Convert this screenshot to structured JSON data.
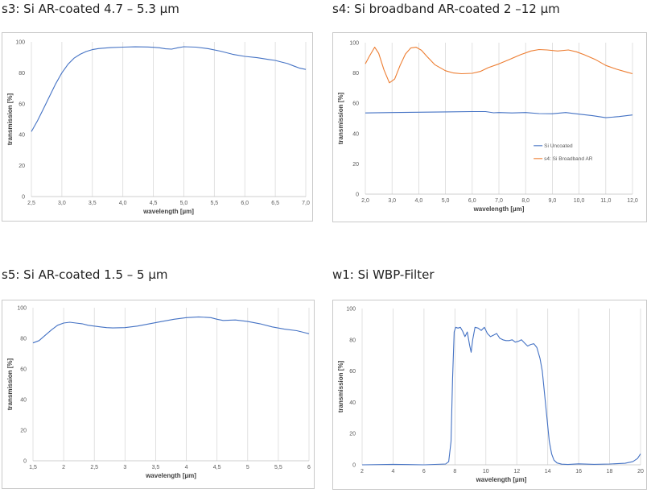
{
  "charts": [
    {
      "title": "s3: Si AR-coated 4.7 – 5.3 µm"
    },
    {
      "title": "s4: Si broadband AR-coated 2 –12 µm"
    },
    {
      "title": "s5: Si AR-coated 1.5 – 5 µm"
    },
    {
      "title": "w1: Si WBP-Filter"
    }
  ],
  "colors": {
    "blue": "#4472C4",
    "orange": "#ED7D31",
    "grid": "#d9d9d9"
  },
  "chart_data": [
    {
      "type": "line",
      "title": "s3: Si AR-coated 4.7 – 5.3 µm",
      "xlabel": "wavelength [µm]",
      "ylabel": "transmission [%]",
      "xlim": [
        2.5,
        7.0
      ],
      "ylim": [
        0,
        100
      ],
      "x_ticks": [
        "2,5",
        "3,0",
        "3,5",
        "4,0",
        "4,5",
        "5,0",
        "5,5",
        "6,0",
        "6,5",
        "7,0"
      ],
      "y_ticks": [
        "0",
        "20",
        "40",
        "60",
        "80",
        "100"
      ],
      "grid": "vertical",
      "series": [
        {
          "color": "#4472C4",
          "x": [
            2.5,
            2.6,
            2.7,
            2.8,
            2.9,
            3.0,
            3.1,
            3.2,
            3.3,
            3.4,
            3.5,
            3.6,
            3.8,
            4.0,
            4.2,
            4.4,
            4.5,
            4.6,
            4.7,
            4.8,
            4.9,
            5.0,
            5.2,
            5.4,
            5.6,
            5.8,
            6.0,
            6.2,
            6.4,
            6.5,
            6.6,
            6.7,
            6.8,
            6.9,
            7.0
          ],
          "y": [
            42,
            49,
            57,
            65,
            73,
            80,
            85.5,
            89.5,
            92,
            93.8,
            95,
            95.7,
            96.3,
            96.6,
            96.8,
            96.7,
            96.5,
            96.2,
            95.5,
            95.3,
            96.2,
            96.9,
            96.6,
            95.6,
            94,
            92,
            90.6,
            89.8,
            88.6,
            88,
            87,
            86,
            84.5,
            83,
            82.2
          ]
        }
      ]
    },
    {
      "type": "line",
      "title": "s4: Si broadband AR-coated 2 –12 µm",
      "xlabel": "wavelength [µm]",
      "ylabel": "transmission [%]",
      "xlim": [
        2.0,
        12.0
      ],
      "ylim": [
        0,
        100
      ],
      "x_ticks": [
        "2,0",
        "3,0",
        "4,0",
        "5,0",
        "6,0",
        "7,0",
        "8,0",
        "9,0",
        "10,0",
        "11,0",
        "12,0"
      ],
      "y_ticks": [
        "0",
        "20",
        "40",
        "60",
        "80",
        "100"
      ],
      "grid": "vertical",
      "legend": "middle-right",
      "series": [
        {
          "name": "Si Uncoated",
          "color": "#4472C4",
          "x": [
            2.0,
            3.0,
            4.0,
            5.0,
            6.0,
            6.5,
            6.8,
            7.0,
            7.5,
            8.0,
            8.5,
            9.0,
            9.5,
            10.0,
            10.5,
            11.0,
            11.5,
            12.0
          ],
          "y": [
            53.6,
            53.9,
            54.1,
            54.3,
            54.5,
            54.5,
            53.7,
            53.9,
            53.6,
            53.9,
            53.2,
            53.1,
            53.9,
            52.8,
            51.8,
            50.5,
            51.2,
            52.3
          ]
        },
        {
          "name": "s4: Si Broadband AR",
          "color": "#ED7D31",
          "x": [
            2.0,
            2.15,
            2.35,
            2.5,
            2.7,
            2.9,
            3.1,
            3.3,
            3.5,
            3.7,
            3.9,
            4.1,
            4.3,
            4.6,
            5.0,
            5.3,
            5.6,
            6.0,
            6.3,
            6.6,
            7.0,
            7.4,
            7.8,
            8.2,
            8.5,
            8.8,
            9.2,
            9.6,
            9.9,
            10.2,
            10.6,
            11.0,
            11.4,
            11.8,
            12.0
          ],
          "y": [
            86,
            91,
            97,
            93,
            82,
            73.5,
            76,
            85,
            92.5,
            96.5,
            97,
            95,
            91,
            85.5,
            81.5,
            80,
            79.5,
            79.8,
            81,
            83.5,
            86,
            89,
            92,
            94.5,
            95.5,
            95.2,
            94.5,
            95.2,
            94,
            92,
            89,
            85,
            82.5,
            80.5,
            79.5
          ]
        }
      ]
    },
    {
      "type": "line",
      "title": "s5: Si AR-coated 1.5 – 5 µm",
      "xlabel": "wavelength [µm]",
      "ylabel": "transmission [%]",
      "xlim": [
        1.5,
        6.0
      ],
      "ylim": [
        0,
        100
      ],
      "x_ticks": [
        "1,5",
        "2",
        "2,5",
        "3",
        "3,5",
        "4",
        "4,5",
        "5",
        "5,5",
        "6"
      ],
      "y_ticks": [
        "0",
        "20",
        "40",
        "60",
        "80",
        "100"
      ],
      "grid": "vertical",
      "series": [
        {
          "color": "#4472C4",
          "x": [
            1.5,
            1.6,
            1.7,
            1.8,
            1.9,
            2.0,
            2.1,
            2.2,
            2.3,
            2.4,
            2.5,
            2.6,
            2.7,
            2.8,
            3.0,
            3.2,
            3.4,
            3.6,
            3.8,
            4.0,
            4.2,
            4.4,
            4.5,
            4.6,
            4.8,
            5.0,
            5.2,
            5.4,
            5.6,
            5.8,
            5.9,
            6.0
          ],
          "y": [
            77,
            78.5,
            82,
            85.5,
            88.5,
            90,
            90.5,
            90,
            89.5,
            88.5,
            88,
            87.5,
            87,
            86.8,
            87,
            88,
            89.5,
            91,
            92.5,
            93.5,
            94,
            93.5,
            92.5,
            91.7,
            92,
            91,
            89.5,
            87.5,
            86,
            85,
            84,
            83
          ]
        }
      ]
    },
    {
      "type": "line",
      "title": "w1: Si WBP-Filter",
      "xlabel": "wavelength [µm]",
      "ylabel": "transmission [%]",
      "xlim": [
        2,
        20
      ],
      "ylim": [
        0,
        100
      ],
      "x_ticks": [
        "2",
        "4",
        "6",
        "8",
        "10",
        "12",
        "14",
        "16",
        "18",
        "20"
      ],
      "y_ticks": [
        "0",
        "20",
        "40",
        "60",
        "80",
        "100"
      ],
      "grid": "vertical",
      "series": [
        {
          "color": "#4472C4",
          "x": [
            2,
            4,
            6,
            7.4,
            7.6,
            7.75,
            7.85,
            7.95,
            8.05,
            8.2,
            8.35,
            8.5,
            8.65,
            8.8,
            8.95,
            9.05,
            9.15,
            9.3,
            9.5,
            9.7,
            9.9,
            10.1,
            10.3,
            10.5,
            10.7,
            10.9,
            11.1,
            11.3,
            11.5,
            11.7,
            11.9,
            12.1,
            12.3,
            12.5,
            12.7,
            12.9,
            13.1,
            13.3,
            13.5,
            13.65,
            13.8,
            13.95,
            14.1,
            14.25,
            14.4,
            14.6,
            14.9,
            15.3,
            16,
            17,
            18,
            19,
            19.5,
            19.8,
            20
          ],
          "y": [
            0,
            0.3,
            0,
            0.5,
            2,
            15,
            55,
            85,
            88,
            87.5,
            88,
            85.5,
            82,
            85,
            76.5,
            72,
            80,
            88,
            87.5,
            86,
            88,
            84,
            82,
            83,
            84,
            81,
            80,
            79.5,
            79.5,
            80,
            78.5,
            79,
            80,
            78,
            76,
            77,
            77.5,
            75,
            68,
            60,
            45,
            30,
            15,
            7,
            3,
            1.2,
            0.4,
            0.2,
            0.6,
            0.3,
            0.5,
            1,
            2,
            4,
            7
          ]
        }
      ]
    }
  ]
}
